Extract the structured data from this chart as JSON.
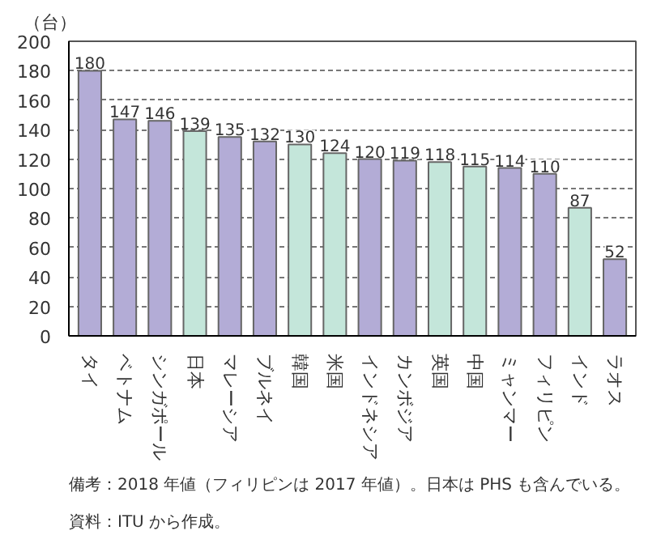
{
  "chart_data": {
    "type": "bar",
    "ylabel": "（台）",
    "categories": [
      "タイ",
      "ベトナム",
      "シンガポール",
      "日本",
      "マレーシア",
      "ブルネイ",
      "韓国",
      "米国",
      "インドネシア",
      "カンボジア",
      "英国",
      "中国",
      "ミャンマー",
      "フィリピン",
      "インド",
      "ラオス"
    ],
    "values": [
      180,
      147,
      146,
      139,
      135,
      132,
      130,
      124,
      120,
      119,
      118,
      115,
      114,
      110,
      87,
      52
    ],
    "colors": [
      "#b3acd6",
      "#b3acd6",
      "#b3acd6",
      "#c4e6da",
      "#b3acd6",
      "#b3acd6",
      "#c4e6da",
      "#c4e6da",
      "#b3acd6",
      "#b3acd6",
      "#c4e6da",
      "#c4e6da",
      "#b3acd6",
      "#b3acd6",
      "#c4e6da",
      "#b3acd6"
    ],
    "ylim": [
      0,
      200
    ],
    "yticks": [
      0,
      20,
      40,
      60,
      80,
      100,
      120,
      140,
      160,
      180,
      200
    ],
    "grid": "y",
    "data_labels": true,
    "annotations": [
      "備考：2018 年値（フィリピンは 2017 年値）。日本は PHS も含んでいる。",
      "資料：ITU から作成。"
    ]
  }
}
